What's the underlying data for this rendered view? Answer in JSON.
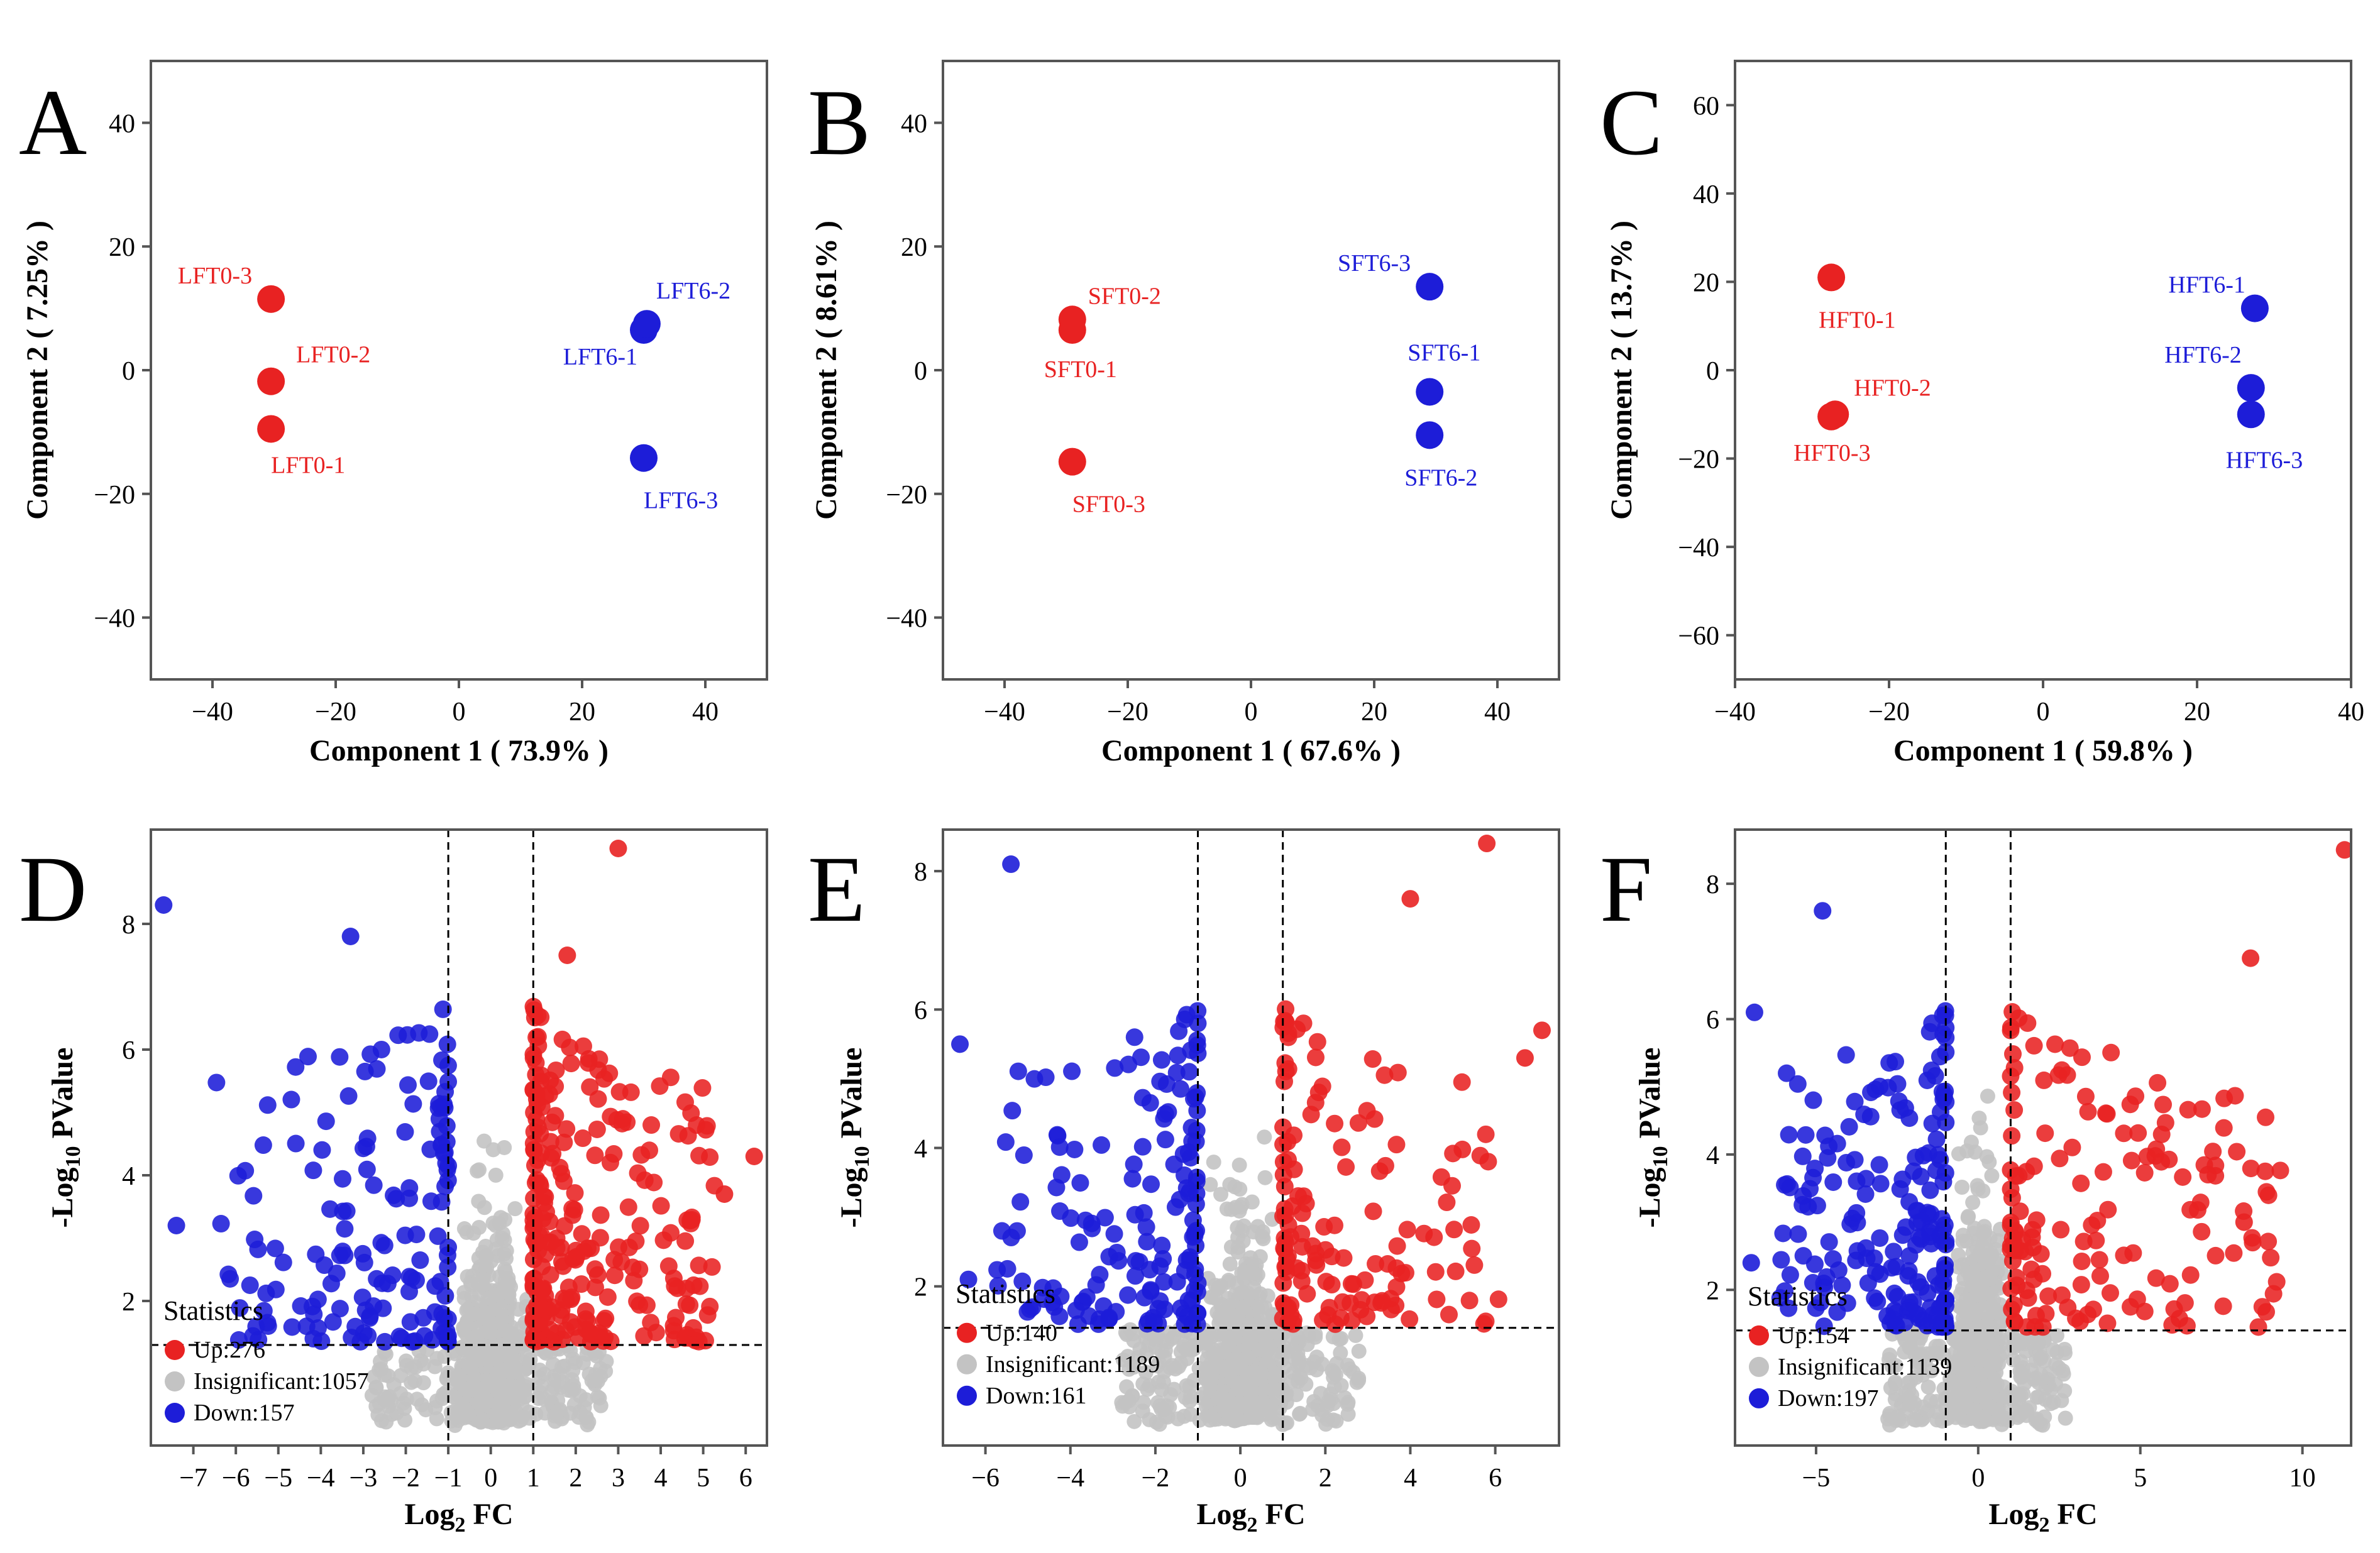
{
  "colors": {
    "red": "#e82222",
    "blue": "#1d1dd8",
    "gray": "#c3c3c3",
    "frame": "#555555"
  },
  "chart_data": [
    {
      "type": "scatter",
      "panel": "A",
      "xlabel": "Component 1 ( 73.9% )",
      "ylabel": "Component 2 ( 7.25% )",
      "xlim": [
        -50,
        50
      ],
      "ylim": [
        -50,
        50
      ],
      "xticks": [
        -40,
        -20,
        0,
        20,
        40
      ],
      "yticks": [
        -40,
        -20,
        0,
        20,
        40
      ],
      "points": [
        {
          "name": "LFT0-1",
          "x": -30.5,
          "y": -9.5,
          "group": "T0"
        },
        {
          "name": "LFT0-2",
          "x": -30.5,
          "y": -1.8,
          "group": "T0"
        },
        {
          "name": "LFT0-3",
          "x": -30.5,
          "y": 11.5,
          "group": "T0"
        },
        {
          "name": "LFT6-1",
          "x": 30,
          "y": 6.5,
          "group": "T6"
        },
        {
          "name": "LFT6-2",
          "x": 30.5,
          "y": 7.5,
          "group": "T6"
        },
        {
          "name": "LFT6-3",
          "x": 30,
          "y": -14.2,
          "group": "T6"
        }
      ]
    },
    {
      "type": "scatter",
      "panel": "B",
      "xlabel": "Component 1 ( 67.6% )",
      "ylabel": "Component 2 ( 8.61% )",
      "xlim": [
        -50,
        50
      ],
      "ylim": [
        -50,
        50
      ],
      "xticks": [
        -40,
        -20,
        0,
        20,
        40
      ],
      "yticks": [
        -40,
        -20,
        0,
        20,
        40
      ],
      "points": [
        {
          "name": "SFT0-1",
          "x": -29,
          "y": 6.5,
          "group": "T0"
        },
        {
          "name": "SFT0-2",
          "x": -29,
          "y": 8.2,
          "group": "T0"
        },
        {
          "name": "SFT0-3",
          "x": -29,
          "y": -14.8,
          "group": "T0"
        },
        {
          "name": "SFT6-1",
          "x": 29,
          "y": -3.5,
          "group": "T6"
        },
        {
          "name": "SFT6-2",
          "x": 29,
          "y": -10.5,
          "group": "T6"
        },
        {
          "name": "SFT6-3",
          "x": 29,
          "y": 13.5,
          "group": "T6"
        }
      ]
    },
    {
      "type": "scatter",
      "panel": "C",
      "xlabel": "Component 1 ( 59.8% )",
      "ylabel": "Component 2 ( 13.7% )",
      "xlim": [
        -40,
        40
      ],
      "ylim": [
        -70,
        70
      ],
      "xticks": [
        -40,
        -20,
        0,
        20,
        40
      ],
      "yticks": [
        -60,
        -40,
        -20,
        0,
        20,
        40,
        60
      ],
      "points": [
        {
          "name": "HFT0-1",
          "x": -27.5,
          "y": 21,
          "group": "T0"
        },
        {
          "name": "HFT0-2",
          "x": -27,
          "y": -10,
          "group": "T0"
        },
        {
          "name": "HFT0-3",
          "x": -27.5,
          "y": -10.5,
          "group": "T0"
        },
        {
          "name": "HFT6-1",
          "x": 27.5,
          "y": 14,
          "group": "T6"
        },
        {
          "name": "HFT6-2",
          "x": 27,
          "y": -4,
          "group": "T6"
        },
        {
          "name": "HFT6-3",
          "x": 27,
          "y": -10,
          "group": "T6"
        }
      ]
    },
    {
      "type": "scatter",
      "subtype": "volcano",
      "panel": "D",
      "xlabel_main": "Log",
      "xlabel_sub": "2",
      "xlabel_tail": " FC",
      "ylabel_main": "-Log",
      "ylabel_sub": "10",
      "ylabel_tail": " PValue",
      "xlim": [
        -8,
        6.5
      ],
      "ylim": [
        -0.3,
        9.5
      ],
      "xticks": [
        -7,
        -6,
        -5,
        -4,
        -3,
        -2,
        -1,
        0,
        1,
        2,
        3,
        4,
        5,
        6
      ],
      "yticks": [
        2,
        4,
        6,
        8
      ],
      "fc_threshold": 1,
      "p_threshold": 1.3,
      "statistics_title": "Statistics",
      "legend": [
        {
          "label": "Up:276",
          "color": "red",
          "count": 276
        },
        {
          "label": "Insignificant:1057",
          "color": "gray",
          "count": 1057
        },
        {
          "label": "Down:157",
          "color": "blue",
          "count": 157
        }
      ],
      "highlights": [
        [
          -7.7,
          8.3
        ],
        [
          3.0,
          9.2
        ],
        [
          -3.3,
          7.8
        ],
        [
          6.2,
          4.3
        ],
        [
          5.5,
          3.7
        ],
        [
          -7.4,
          3.2
        ],
        [
          1.8,
          7.5
        ]
      ]
    },
    {
      "type": "scatter",
      "subtype": "volcano",
      "panel": "E",
      "xlabel_main": "Log",
      "xlabel_sub": "2",
      "xlabel_tail": " FC",
      "ylabel_main": "-Log",
      "ylabel_sub": "10",
      "ylabel_tail": " PValue",
      "xlim": [
        -7,
        7.5
      ],
      "ylim": [
        -0.3,
        8.6
      ],
      "xticks": [
        -6,
        -4,
        -2,
        0,
        2,
        4,
        6
      ],
      "yticks": [
        2,
        4,
        6,
        8
      ],
      "fc_threshold": 1,
      "p_threshold": 1.4,
      "statistics_title": "Statistics",
      "legend": [
        {
          "label": "Up:140",
          "color": "red",
          "count": 140
        },
        {
          "label": "Insignificant:1189",
          "color": "gray",
          "count": 1189
        },
        {
          "label": "Down:161",
          "color": "blue",
          "count": 161
        }
      ],
      "highlights": [
        [
          -5.4,
          8.1
        ],
        [
          5.8,
          8.4
        ],
        [
          4.0,
          7.6
        ],
        [
          7.1,
          5.7
        ],
        [
          6.7,
          5.3
        ],
        [
          -6.6,
          5.5
        ],
        [
          -6.4,
          2.1
        ]
      ]
    },
    {
      "type": "scatter",
      "subtype": "volcano",
      "panel": "F",
      "xlabel_main": "Log",
      "xlabel_sub": "2",
      "xlabel_tail": " FC",
      "ylabel_main": "-Log",
      "ylabel_sub": "10",
      "ylabel_tail": " PValue",
      "xlim": [
        -7.5,
        11.5
      ],
      "ylim": [
        -0.3,
        8.8
      ],
      "xticks": [
        -5,
        0,
        5,
        10
      ],
      "yticks": [
        2,
        4,
        6,
        8
      ],
      "fc_threshold": 1,
      "p_threshold": 1.4,
      "statistics_title": "Statistics",
      "legend": [
        {
          "label": "Up:154",
          "color": "red",
          "count": 154
        },
        {
          "label": "Insignificant:1139",
          "color": "gray",
          "count": 1139
        },
        {
          "label": "Down:197",
          "color": "blue",
          "count": 197
        }
      ],
      "highlights": [
        [
          11.3,
          8.5
        ],
        [
          8.4,
          6.9
        ],
        [
          8.2,
          3.0
        ],
        [
          -4.8,
          7.6
        ],
        [
          -6.9,
          6.1
        ],
        [
          -7.0,
          2.4
        ]
      ]
    }
  ]
}
